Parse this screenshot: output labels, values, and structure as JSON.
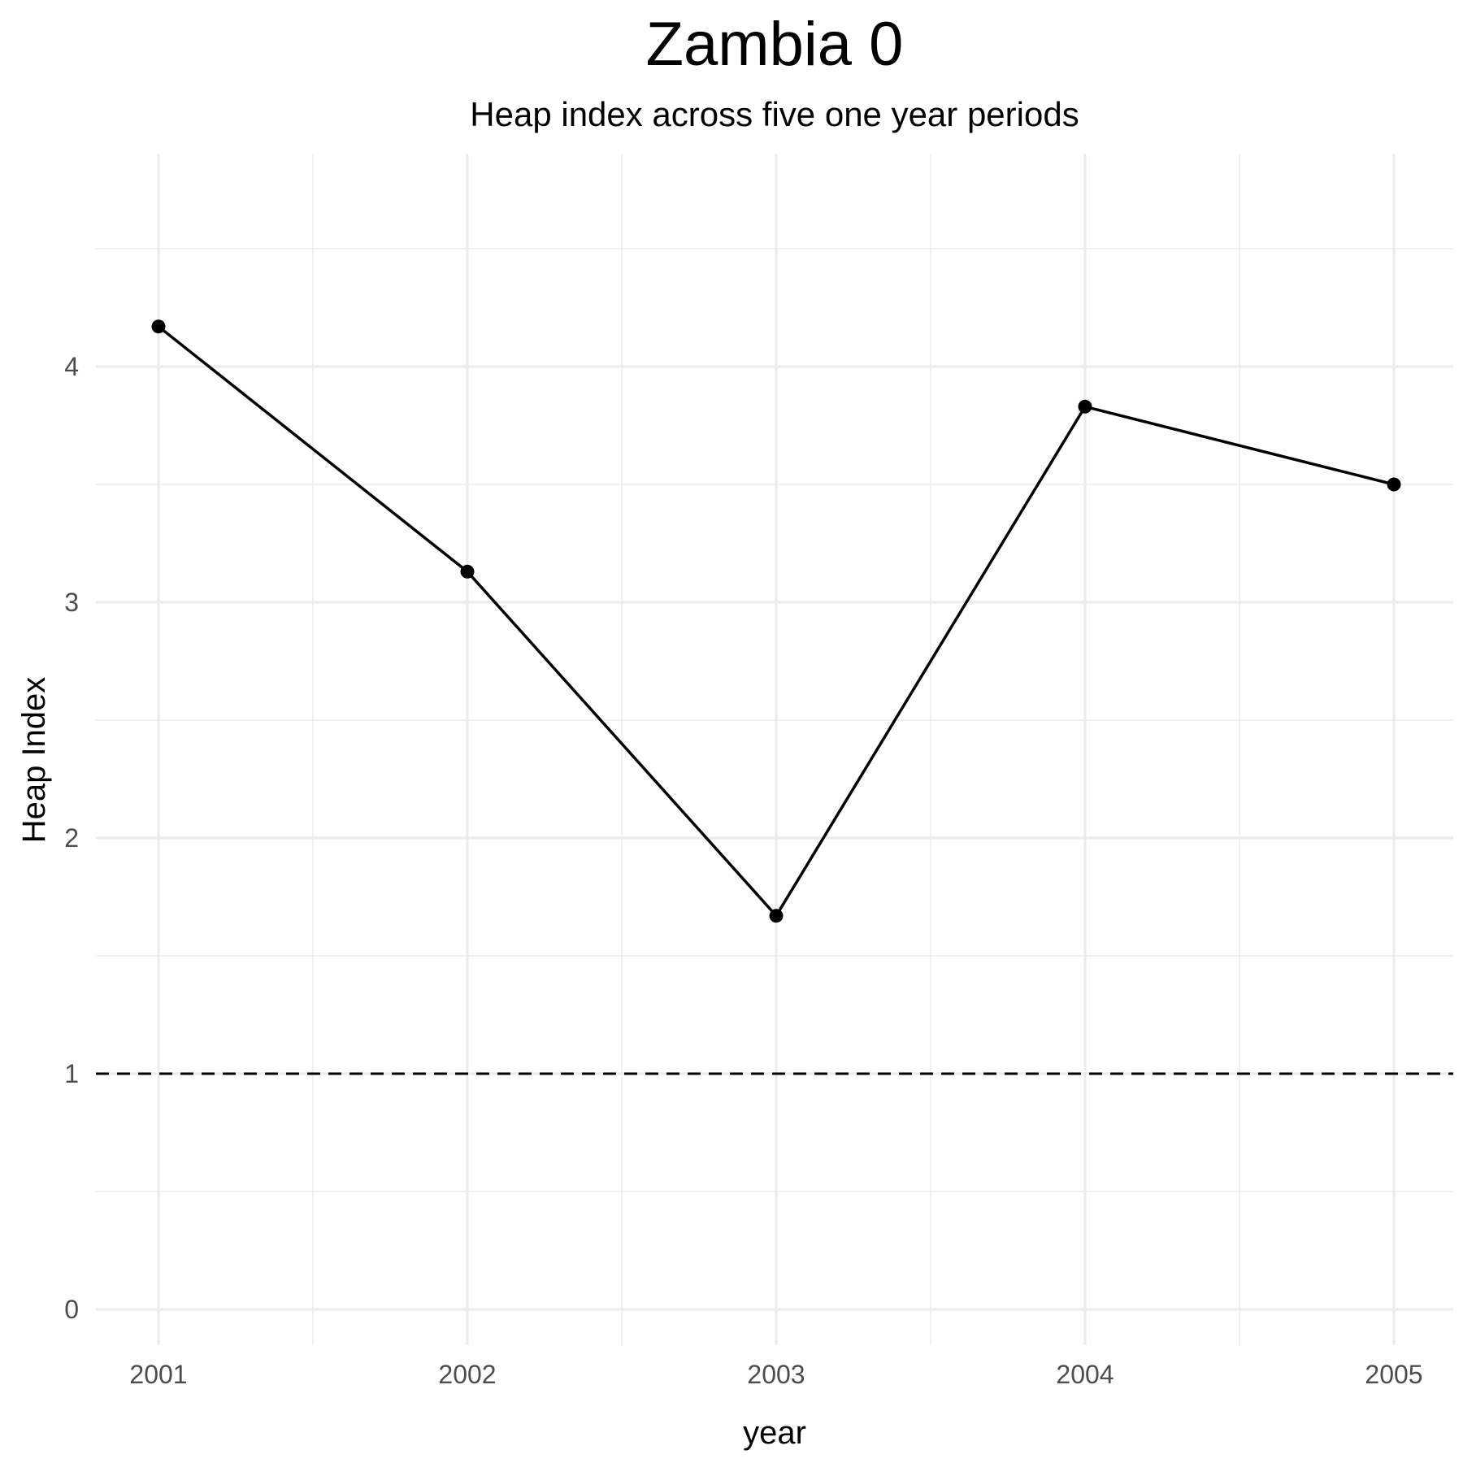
{
  "chart_data": {
    "type": "line",
    "title": "Zambia 0",
    "subtitle": "Heap index across five one year periods",
    "xlabel": "year",
    "ylabel": "Heap Index",
    "x": [
      2001,
      2002,
      2003,
      2004,
      2005
    ],
    "x_tick_labels": [
      "2001",
      "2002",
      "2003",
      "2004",
      "2005"
    ],
    "y_tick_labels": [
      "0",
      "1",
      "2",
      "3",
      "4"
    ],
    "y_ticks": [
      0,
      1,
      2,
      3,
      4
    ],
    "series": [
      {
        "values": [
          4.17,
          3.13,
          1.67,
          3.83,
          3.5
        ],
        "color": "#000000"
      }
    ],
    "reference_line": {
      "y": 1,
      "style": "dashed",
      "color": "#000000"
    },
    "xlim": [
      2000.8,
      2005.2
    ],
    "ylim": [
      -0.25,
      4.9
    ],
    "grid": true,
    "legend": "none"
  }
}
